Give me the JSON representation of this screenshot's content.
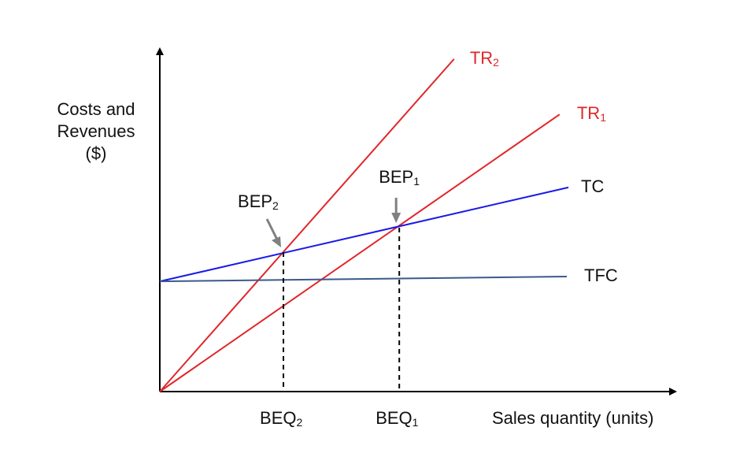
{
  "chart_data": {
    "type": "line",
    "title": "",
    "xlabel": "Sales quantity (units)",
    "ylabel_lines": [
      "Costs and",
      "Revenues",
      "($)"
    ],
    "xlim": [
      0,
      100
    ],
    "ylim": [
      0,
      100
    ],
    "grid": false,
    "series": [
      {
        "name": "TR",
        "sub": "2",
        "color": "#e0262a",
        "points": [
          [
            0,
            0
          ],
          [
            56.9,
            96.6
          ]
        ]
      },
      {
        "name": "TR",
        "sub": "1",
        "color": "#e0262a",
        "points": [
          [
            0,
            0
          ],
          [
            77.3,
            80.5
          ]
        ]
      },
      {
        "name": "TC",
        "sub": "",
        "color": "#1a1ae6",
        "points": [
          [
            0,
            32.0
          ],
          [
            79.0,
            59.3
          ]
        ]
      },
      {
        "name": "TFC",
        "sub": "",
        "color": "#3a5a8a",
        "points": [
          [
            0,
            32.0
          ],
          [
            78.7,
            33.4
          ]
        ]
      }
    ],
    "break_even_points": [
      {
        "label": "BEP",
        "sub": "2",
        "q_label": "BEQ",
        "q_sub": "2",
        "x": 23.9,
        "y": 40.5
      },
      {
        "label": "BEP",
        "sub": "1",
        "q_label": "BEQ",
        "q_sub": "1",
        "x": 46.3,
        "y": 47.6
      }
    ],
    "colors": {
      "revenue": "#e0262a",
      "cost": "#1a1ae6",
      "fixed_cost": "#3a5a8a",
      "arrow": "#808080",
      "axis": "#000000"
    }
  }
}
